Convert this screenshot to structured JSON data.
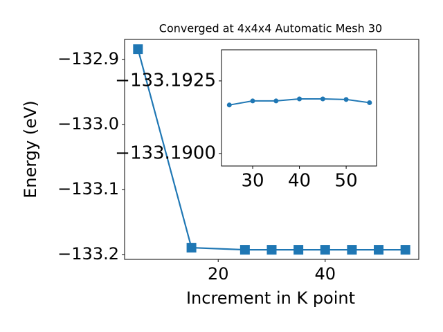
{
  "chart_data": [
    {
      "type": "line",
      "title": "Converged at 4x4x4 Automatic Mesh 30",
      "x_label": "Increment in K point",
      "y_label": "Energy (eV)",
      "x": [
        5,
        15,
        25,
        30,
        35,
        40,
        45,
        50,
        55
      ],
      "series": [
        {
          "color": "#1f77b4",
          "marker": "square",
          "values": [
            -132.884,
            -133.1894,
            -133.1926,
            -133.1926,
            -133.1926,
            -133.1926,
            -133.1926,
            -133.1926,
            -133.1926
          ]
        }
      ],
      "xlim": [
        2.5,
        57.5
      ],
      "ylim": [
        -133.2074,
        -132.869
      ],
      "xticks": [
        20,
        40
      ],
      "yticks": [
        {
          "value": -132.9,
          "label": "−132.9"
        },
        {
          "value": -133.0,
          "label": "−133.0"
        },
        {
          "value": -133.1,
          "label": "−133.1"
        },
        {
          "value": -133.2,
          "label": "−133.2"
        }
      ]
    },
    {
      "type": "line",
      "x": [
        25,
        30,
        35,
        40,
        45,
        50,
        55
      ],
      "series": [
        {
          "color": "#1f77b4",
          "marker": "circle",
          "values": [
            -133.19167,
            -133.19181,
            -133.19181,
            -133.19188,
            -133.19188,
            -133.19186,
            -133.19175
          ]
        }
      ],
      "xlim": [
        23.33,
        56.5
      ],
      "ylim": [
        -133.18957,
        -133.19357
      ],
      "xticks": [
        30,
        40,
        50
      ],
      "yticks": [
        {
          "value": -133.1925,
          "label": "−133.1925"
        },
        {
          "value": -133.19,
          "label": "−133.1900"
        }
      ]
    }
  ]
}
